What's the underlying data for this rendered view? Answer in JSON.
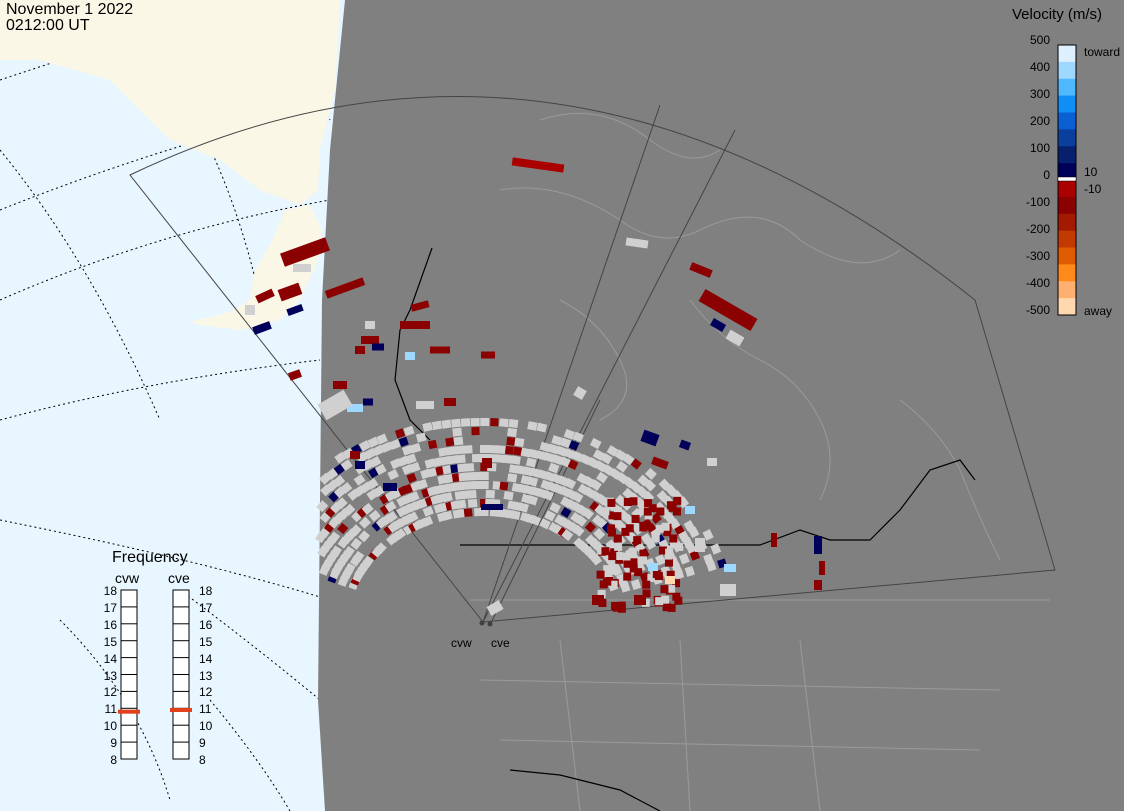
{
  "header": {
    "date": "November 1 2022",
    "time": "0212:00 UT"
  },
  "legend": {
    "title": "Velocity (m/s)",
    "ticks": [
      "500",
      "400",
      "300",
      "200",
      "100",
      "0",
      "-100",
      "-200",
      "-300",
      "-400",
      "-500"
    ],
    "low_threshold_pos": "10",
    "low_threshold_neg": "-10",
    "toward_label": "toward",
    "away_label": "away",
    "colors": [
      "#deefff",
      "#9fd8ff",
      "#4fb8ff",
      "#0f8ef6",
      "#0a5fd4",
      "#0b3f9e",
      "#06206e",
      "#00005a",
      "#aa0000",
      "#8b0000",
      "#a31a00",
      "#c23a00",
      "#e05a00",
      "#ff8a1a",
      "#ffb070",
      "#ffd8b0"
    ]
  },
  "frequency": {
    "title": "Frequency",
    "radars": [
      {
        "name": "cvw",
        "freq_mhz": 10.8
      },
      {
        "name": "cve",
        "freq_mhz": 10.9
      }
    ],
    "ticks": [
      "18",
      "17",
      "16",
      "15",
      "14",
      "13",
      "12",
      "11",
      "10",
      "9",
      "8"
    ]
  },
  "radars": [
    {
      "name": "cvw"
    },
    {
      "name": "cve"
    }
  ],
  "map_colors": {
    "ocean": "#e8f6ff",
    "land": "#fbf7e6",
    "night_shade": "#808080",
    "ground_scatter": "#d0d0d0"
  }
}
